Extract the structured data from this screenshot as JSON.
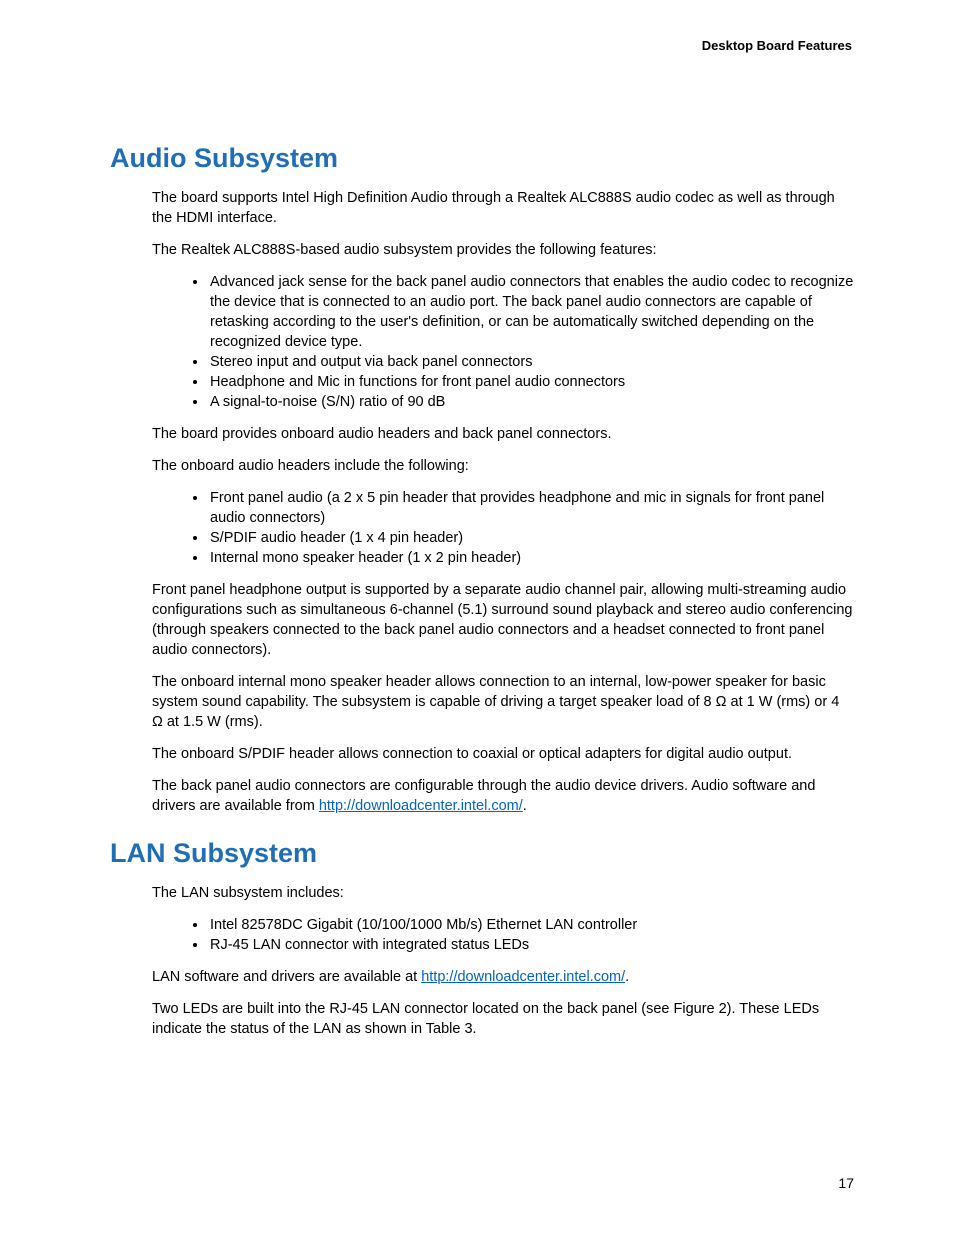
{
  "page": {
    "header": "Desktop Board Features",
    "page_number": "17"
  },
  "colors": {
    "heading": "#1f6eb7",
    "link": "#0563c1",
    "text": "#000000",
    "background": "#ffffff"
  },
  "typography": {
    "body_font": "Verdana",
    "body_size_pt": 11,
    "heading_size_pt": 20,
    "heading_weight": "bold"
  },
  "sections": {
    "audio": {
      "title": "Audio Subsystem",
      "intro": "The board supports Intel High Definition Audio through a Realtek ALC888S audio codec as well as through the HDMI interface.",
      "features_intro": "The Realtek ALC888S-based audio subsystem provides the following features:",
      "features": [
        "Advanced jack sense for the back panel audio connectors that enables the audio codec to recognize the device that is connected to an audio port.  The back panel audio connectors are capable of retasking according to the user's definition, or can be automatically switched depending on the recognized device type.",
        "Stereo input and output via back panel connectors",
        "Headphone and Mic in functions for front panel audio connectors",
        "A signal-to-noise (S/N) ratio of 90 dB"
      ],
      "para_headers_connectors": "The board provides onboard audio headers and back panel connectors.",
      "headers_intro": "The onboard audio headers include the following:",
      "headers_list": [
        "Front panel audio (a 2 x 5 pin header that provides headphone and mic in signals for front panel audio connectors)",
        "S/PDIF audio header (1 x 4 pin header)",
        "Internal mono speaker header (1 x 2 pin header)"
      ],
      "para_front_panel": "Front panel headphone output is supported by a separate audio channel pair, allowing multi-streaming audio configurations such as simultaneous 6-channel (5.1) surround sound playback and stereo audio conferencing (through speakers connected to the back panel audio connectors and a headset connected to front panel audio connectors).",
      "para_mono": "The onboard internal mono speaker header allows connection to an internal, low-power speaker for basic system sound capability.  The subsystem is capable of driving a target speaker load of 8 Ω at 1 W (rms) or 4 Ω  at 1.5 W (rms).",
      "para_spdif": "The onboard S/PDIF header allows connection to coaxial or optical adapters for digital audio output.",
      "para_drivers_pre": "The back panel audio connectors are configurable through the audio device drivers. Audio software and drivers are available from ",
      "link_text": "http://downloadcenter.intel.com/",
      "para_drivers_post": "."
    },
    "lan": {
      "title": "LAN Subsystem",
      "intro": "The LAN subsystem includes:",
      "items": [
        "Intel 82578DC Gigabit (10/100/1000 Mb/s) Ethernet LAN controller",
        "RJ-45 LAN connector with integrated status LEDs"
      ],
      "drivers_pre": "LAN software and drivers are available at  ",
      "link_text": "http://downloadcenter.intel.com/",
      "drivers_post": ".",
      "leds": "Two LEDs are built into the RJ-45 LAN connector located on the back panel (see Figure 2).  These LEDs indicate the status of the LAN as shown in Table 3."
    }
  }
}
